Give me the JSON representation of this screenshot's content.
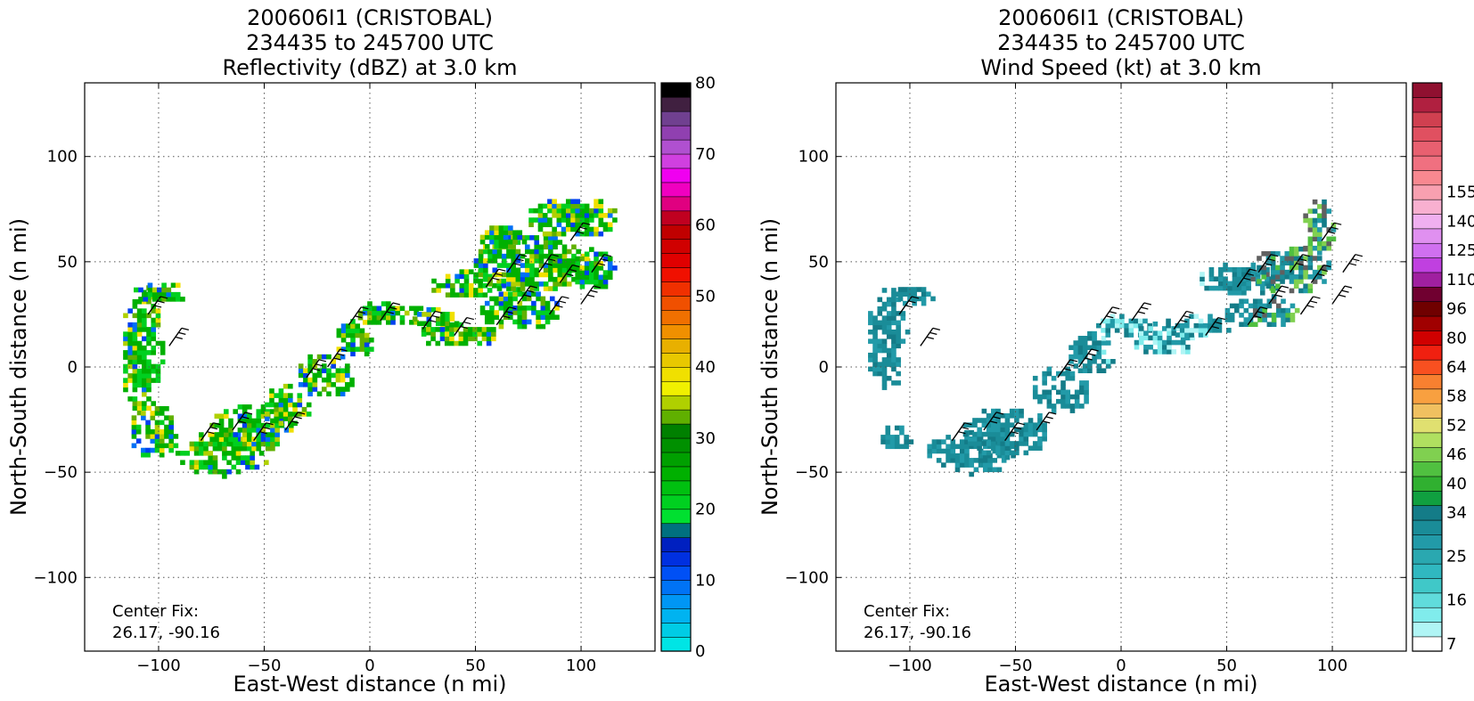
{
  "chart_data": [
    {
      "type": "heatmap",
      "title_lines": [
        "200606I1 (CRISTOBAL)",
        "234435 to 245700 UTC",
        "Reflectivity (dBZ) at 3.0 km"
      ],
      "xlabel": "East-West distance (n mi)",
      "ylabel": "North-South distance (n mi)",
      "xlim": [
        -135,
        135
      ],
      "ylim": [
        -135,
        135
      ],
      "xticks": [
        -100,
        -50,
        0,
        50,
        100
      ],
      "yticks": [
        -100,
        -50,
        0,
        50,
        100
      ],
      "grid": true,
      "colorbar": {
        "range": [
          0,
          80
        ],
        "step": 2.5,
        "tick_values": [
          0,
          10,
          20,
          30,
          40,
          50,
          60,
          70,
          80
        ],
        "colors": [
          "#00e5e5",
          "#00cce5",
          "#00b3f0",
          "#0096f5",
          "#0073f5",
          "#0050f5",
          "#0030e0",
          "#0020c0",
          "#00707f",
          "#00e030",
          "#00d020",
          "#00c010",
          "#00b000",
          "#00a000",
          "#009000",
          "#008000",
          "#60b000",
          "#b0d000",
          "#f0f000",
          "#f0e000",
          "#e8c800",
          "#e8b000",
          "#f09000",
          "#f07000",
          "#f05000",
          "#f03000",
          "#f01000",
          "#e00000",
          "#d00000",
          "#c00000",
          "#c00020",
          "#e00080",
          "#f000c0",
          "#f000f0",
          "#d040e0",
          "#b050d0",
          "#9040b0",
          "#704090",
          "#402040",
          "#000000"
        ]
      },
      "annotation": [
        "Center Fix:",
        "26.17, -90.16"
      ],
      "echo_regions": [
        {
          "cx": -109,
          "cy": 7,
          "rx": 10,
          "ry": 32
        },
        {
          "cx": -103,
          "cy": -32,
          "rx": 12,
          "ry": 13
        },
        {
          "cx": -100,
          "cy": 34,
          "rx": 14,
          "ry": 5
        },
        {
          "cx": -70,
          "cy": -42,
          "rx": 22,
          "ry": 11
        },
        {
          "cx": -58,
          "cy": -30,
          "rx": 20,
          "ry": 12
        },
        {
          "cx": -40,
          "cy": -20,
          "rx": 12,
          "ry": 10
        },
        {
          "cx": -22,
          "cy": -5,
          "rx": 14,
          "ry": 11
        },
        {
          "cx": -8,
          "cy": 12,
          "rx": 10,
          "ry": 9
        },
        {
          "cx": 8,
          "cy": 24,
          "rx": 18,
          "ry": 6
        },
        {
          "cx": 30,
          "cy": 20,
          "rx": 12,
          "ry": 7
        },
        {
          "cx": 45,
          "cy": 38,
          "rx": 18,
          "ry": 7
        },
        {
          "cx": 40,
          "cy": 14,
          "rx": 20,
          "ry": 6
        },
        {
          "cx": 70,
          "cy": 26,
          "rx": 20,
          "ry": 10
        },
        {
          "cx": 75,
          "cy": 48,
          "rx": 28,
          "ry": 14
        },
        {
          "cx": 95,
          "cy": 70,
          "rx": 22,
          "ry": 10
        },
        {
          "cx": 105,
          "cy": 45,
          "rx": 10,
          "ry": 10
        },
        {
          "cx": 62,
          "cy": 60,
          "rx": 12,
          "ry": 6
        }
      ]
    },
    {
      "type": "heatmap",
      "title_lines": [
        "200606I1 (CRISTOBAL)",
        "234435 to 245700 UTC",
        "Wind Speed (kt) at 3.0 km"
      ],
      "xlabel": "East-West distance (n mi)",
      "ylabel": "North-South distance (n mi)",
      "xlim": [
        -135,
        135
      ],
      "ylim": [
        -135,
        135
      ],
      "xticks": [
        -100,
        -50,
        0,
        50,
        100
      ],
      "yticks": [
        -100,
        -50,
        0,
        50,
        100
      ],
      "grid": true,
      "colorbar": {
        "tick_values": [
          7,
          16,
          25,
          34,
          40,
          46,
          52,
          58,
          64,
          80,
          96,
          110,
          125,
          140,
          155
        ],
        "tick_positions": [
          0.5,
          3.5,
          6.5,
          9.5,
          11.5,
          13.5,
          15.5,
          17.5,
          19.5,
          21.5,
          23.5,
          25.5,
          27.5,
          29.5,
          31.5
        ],
        "colors": [
          "#ffffff",
          "#b0f5f5",
          "#80ecec",
          "#60dcdc",
          "#40c8c8",
          "#30b8c0",
          "#2aa8b0",
          "#229aa8",
          "#1a8c98",
          "#147c88",
          "#10a040",
          "#30b030",
          "#50c040",
          "#80d050",
          "#b0e060",
          "#e0e070",
          "#f0c060",
          "#f8a040",
          "#f88030",
          "#f85020",
          "#f02010",
          "#d00000",
          "#a00000",
          "#700000",
          "#700030",
          "#a020a0",
          "#c040e0",
          "#d070f0",
          "#e090f0",
          "#f0b0f0",
          "#f8b0d0",
          "#f8a0b0",
          "#f88890",
          "#f07080",
          "#e86070",
          "#e05060",
          "#d04050",
          "#b02040",
          "#901030"
        ]
      },
      "annotation": [
        "Center Fix:",
        "26.17, -90.16"
      ],
      "wind_regions": [
        {
          "cx": -112,
          "cy": 12,
          "rx": 10,
          "ry": 25
        },
        {
          "cx": -108,
          "cy": -35,
          "rx": 8,
          "ry": 6
        },
        {
          "cx": -100,
          "cy": 32,
          "rx": 10,
          "ry": 5
        },
        {
          "cx": -72,
          "cy": -42,
          "rx": 22,
          "ry": 10
        },
        {
          "cx": -55,
          "cy": -32,
          "rx": 22,
          "ry": 12
        },
        {
          "cx": -30,
          "cy": -12,
          "rx": 14,
          "ry": 12
        },
        {
          "cx": -15,
          "cy": 5,
          "rx": 12,
          "ry": 10
        },
        {
          "cx": 0,
          "cy": 18,
          "rx": 14,
          "ry": 6
        },
        {
          "cx": 20,
          "cy": 12,
          "rx": 16,
          "ry": 8
        },
        {
          "cx": 35,
          "cy": 18,
          "rx": 16,
          "ry": 6
        },
        {
          "cx": 55,
          "cy": 40,
          "rx": 20,
          "ry": 8
        },
        {
          "cx": 65,
          "cy": 25,
          "rx": 18,
          "ry": 8
        },
        {
          "cx": 80,
          "cy": 45,
          "rx": 18,
          "ry": 12
        },
        {
          "cx": 92,
          "cy": 65,
          "rx": 8,
          "ry": 14
        }
      ]
    }
  ]
}
